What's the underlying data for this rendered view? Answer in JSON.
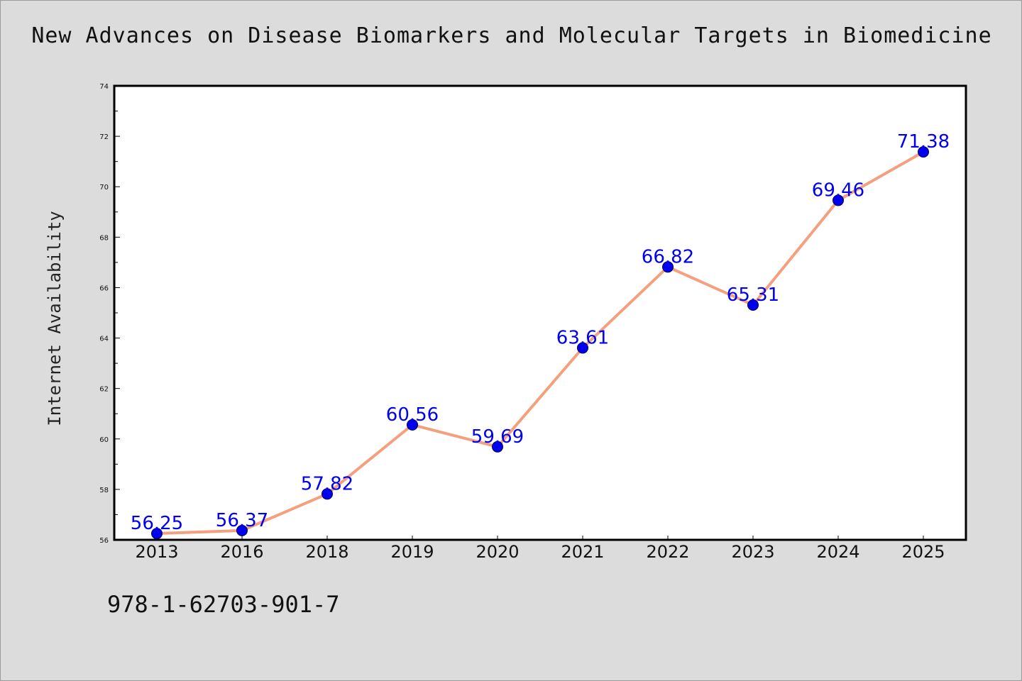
{
  "chart_data": {
    "type": "line",
    "title": "New Advances on Disease Biomarkers and Molecular Targets in Biomedicine",
    "xlabel": "",
    "ylabel": "Internet Availability",
    "categories": [
      "2013",
      "2016",
      "2018",
      "2019",
      "2020",
      "2021",
      "2022",
      "2023",
      "2024",
      "2025"
    ],
    "series": [
      {
        "values": [
          56.25,
          56.37,
          57.82,
          60.56,
          59.69,
          63.61,
          66.82,
          65.31,
          69.46,
          71.38
        ]
      }
    ],
    "data_labels": [
      "56.25",
      "56.37",
      "57.82",
      "60.56",
      "59.69",
      "63.61",
      "66.82",
      "65.31",
      "69.46",
      "71.38"
    ],
    "ylim": [
      56,
      74
    ],
    "yticks": [
      "56",
      "58",
      "60",
      "62",
      "64",
      "66",
      "68",
      "70",
      "72",
      "74"
    ],
    "grid": false,
    "line_color": "#f4a07f",
    "marker_color": "#0000ee",
    "label_color": "#0000ee"
  },
  "footer": {
    "code": "978-1-62703-901-7"
  }
}
